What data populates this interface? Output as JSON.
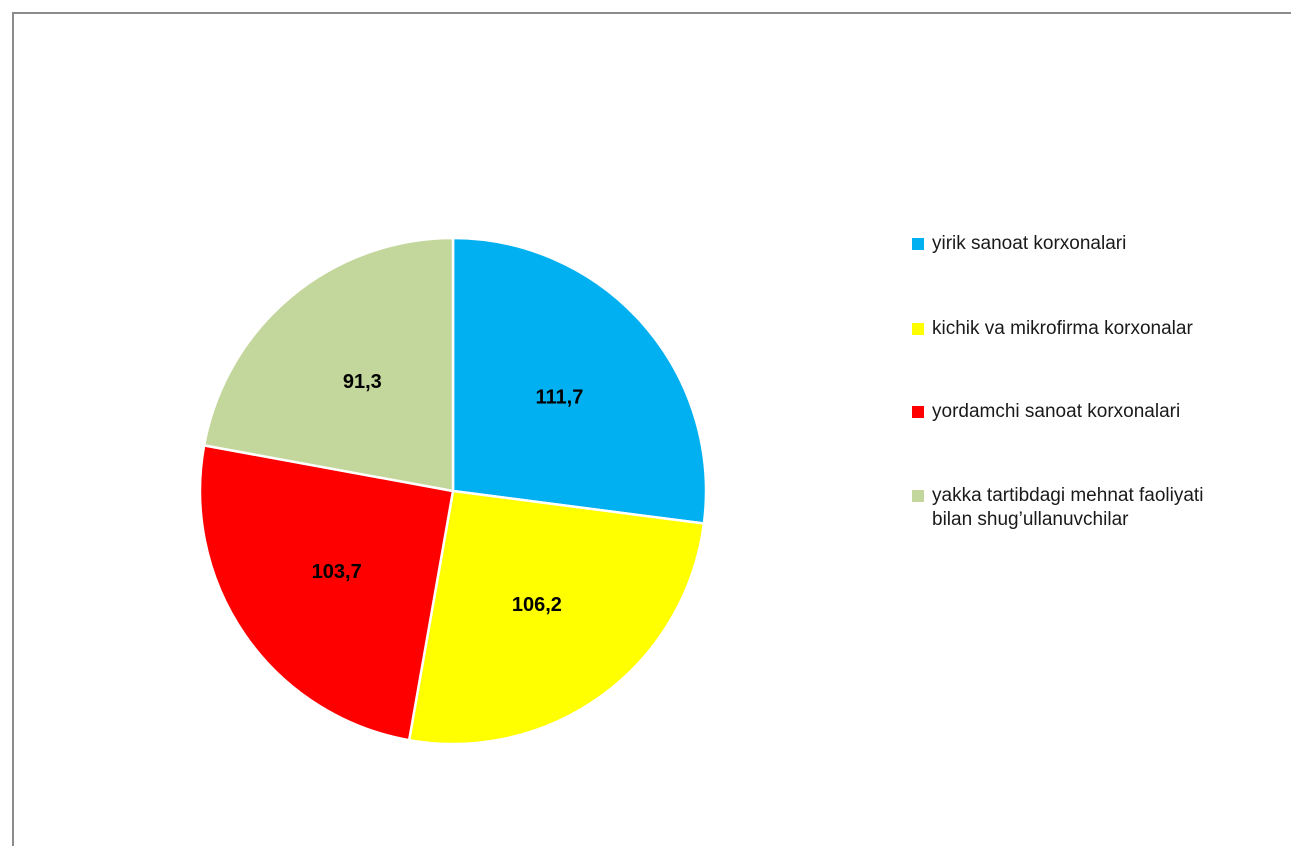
{
  "chart_data": {
    "type": "pie",
    "title": "",
    "slices": [
      {
        "label": "yirik sanoat korxonalari",
        "value": 111.7,
        "display": "111,7",
        "color": "#00B0F0"
      },
      {
        "label": "kichik va mikrofirma korxonalar",
        "value": 106.2,
        "display": "106,2",
        "color": "#FFFF00"
      },
      {
        "label": "yordamchi sanoat korxonalari",
        "value": 103.7,
        "display": "103,7",
        "color": "#FF0000"
      },
      {
        "label": "yakka tartibdagi mehnat faoliyati\nbilan shug’ullanuvchilar",
        "value": 91.3,
        "display": "91,3",
        "color": "#C3D69B"
      }
    ],
    "legend_position": "right",
    "start_angle": "12 o'clock",
    "direction": "clockwise"
  }
}
